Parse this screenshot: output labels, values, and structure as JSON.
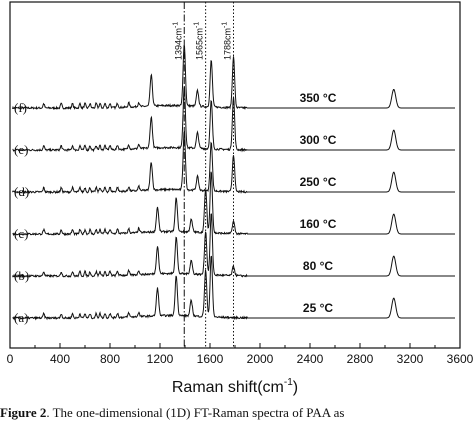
{
  "chart_data": {
    "type": "line",
    "xlabel": "Raman shift(cm",
    "xlabel_sup": "-1",
    "xlabel_close": ")",
    "xlim": [
      0,
      3600
    ],
    "xticks": [
      "0",
      "400",
      "800",
      "1200",
      "1600",
      "2000",
      "2400",
      "2800",
      "3200",
      "3600"
    ],
    "reference_lines": [
      {
        "x": 1394,
        "label": "1394cm",
        "sup": "-1",
        "style": "dash-dot"
      },
      {
        "x": 1565,
        "label": "1565cm",
        "sup": "-1",
        "style": "dotted"
      },
      {
        "x": 1788,
        "label": "1788cm",
        "sup": "-1",
        "style": "dotted"
      }
    ],
    "series": [
      {
        "name": "(f)",
        "temperature": "350 °C",
        "peaks": [
          [
            1130,
            0.5
          ],
          [
            1394,
            1.0
          ],
          [
            1500,
            0.25
          ],
          [
            1610,
            0.75
          ],
          [
            1788,
            0.82
          ],
          [
            3070,
            0.3
          ]
        ]
      },
      {
        "name": "(e)",
        "temperature": "300 °C",
        "peaks": [
          [
            1130,
            0.5
          ],
          [
            1394,
            1.0
          ],
          [
            1500,
            0.25
          ],
          [
            1610,
            0.78
          ],
          [
            1788,
            0.85
          ],
          [
            3070,
            0.32
          ]
        ]
      },
      {
        "name": "(d)",
        "temperature": "250 °C",
        "peaks": [
          [
            1130,
            0.45
          ],
          [
            1394,
            0.95
          ],
          [
            1500,
            0.22
          ],
          [
            1610,
            0.8
          ],
          [
            1788,
            0.6
          ],
          [
            3070,
            0.32
          ]
        ]
      },
      {
        "name": "(c)",
        "temperature": "160 °C",
        "peaks": [
          [
            1180,
            0.4
          ],
          [
            1330,
            0.55
          ],
          [
            1450,
            0.2
          ],
          [
            1565,
            0.7
          ],
          [
            1610,
            1.0
          ],
          [
            1788,
            0.2
          ],
          [
            3070,
            0.32
          ]
        ]
      },
      {
        "name": "(b)",
        "temperature": "80 °C",
        "peaks": [
          [
            1180,
            0.45
          ],
          [
            1330,
            0.6
          ],
          [
            1450,
            0.22
          ],
          [
            1565,
            0.7
          ],
          [
            1610,
            1.0
          ],
          [
            1788,
            0.15
          ],
          [
            3070,
            0.32
          ]
        ]
      },
      {
        "name": "(a)",
        "temperature": "25 °C",
        "peaks": [
          [
            1180,
            0.45
          ],
          [
            1330,
            0.65
          ],
          [
            1450,
            0.25
          ],
          [
            1565,
            0.75
          ],
          [
            1610,
            1.0
          ],
          [
            3070,
            0.32
          ]
        ]
      }
    ]
  },
  "caption": {
    "prefix": "Figure 2",
    "text": ". The one-dimensional (1D) FT-Raman spectra of PAA as"
  },
  "colors": {
    "line": "#111111",
    "background": "#ffffff"
  }
}
